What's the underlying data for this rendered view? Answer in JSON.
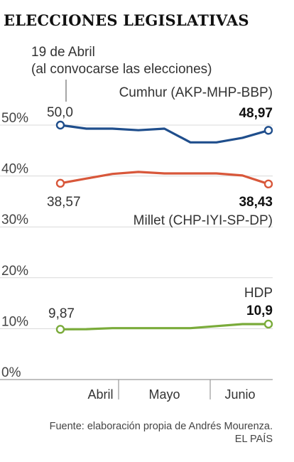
{
  "chart_data": {
    "type": "line",
    "title": "ELECCIONES LEGISLATIVAS",
    "y_ticks": [
      "50%",
      "40%",
      "30%",
      "20%",
      "10%",
      "0%"
    ],
    "ylim": [
      0,
      50
    ],
    "x_ticks": [
      "Abril",
      "Mayo",
      "Junio"
    ],
    "annotation": {
      "line1": "19 de Abril",
      "line2": "(al convocarse las elecciones)"
    },
    "series": [
      {
        "name": "Cumhur (AKP-MHP-BBP)",
        "color": "#1f4e8c",
        "start_label": "50,0",
        "end_label": "48,97",
        "values": [
          50.0,
          49.3,
          49.3,
          49.0,
          49.3,
          46.6,
          46.6,
          47.5,
          48.97
        ]
      },
      {
        "name": "Millet (CHP-IYI-SP-DP)",
        "color": "#d8573a",
        "start_label": "38,57",
        "end_label": "38,43",
        "values": [
          38.57,
          39.5,
          40.4,
          40.8,
          40.5,
          40.5,
          40.5,
          40.1,
          38.43
        ]
      },
      {
        "name": "HDP",
        "color": "#7aab3a",
        "start_label": "9,87",
        "end_label": "10,9",
        "values": [
          9.87,
          9.9,
          10.1,
          10.1,
          10.1,
          10.1,
          10.5,
          10.9,
          10.9
        ]
      }
    ]
  },
  "footer": {
    "source": "Fuente: elaboración propia de Andrés Mourenza.",
    "publisher": "EL PAÍS"
  }
}
